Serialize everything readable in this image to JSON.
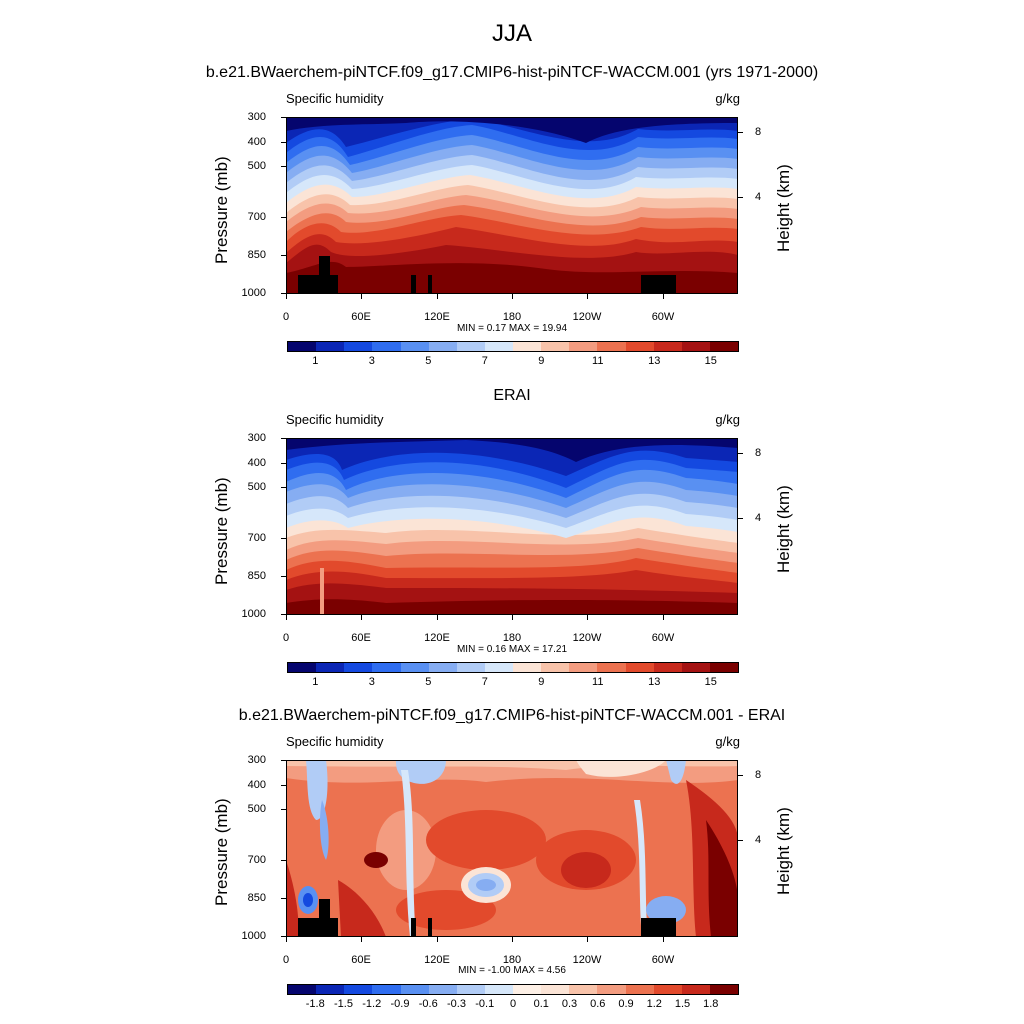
{
  "figure_title": "JJA",
  "panels": [
    {
      "title": "b.e21.BWaerchem-piNTCF.f09_g17.CMIP6-hist-piNTCF-WACCM.001 (yrs 1971-2000)",
      "left_title": "Specific humidity",
      "right_title": "g/kg",
      "minmax": "MIN =   0.17  MAX =  19.94"
    },
    {
      "title": "ERAI",
      "left_title": "Specific humidity",
      "right_title": "g/kg",
      "minmax": "MIN =   0.16  MAX =  17.21"
    },
    {
      "title": "b.e21.BWaerchem-piNTCF.f09_g17.CMIP6-hist-piNTCF-WACCM.001 - ERAI",
      "left_title": "Specific humidity",
      "right_title": "g/kg",
      "minmax": "MIN =  -1.00  MAX =   4.56"
    }
  ],
  "axes": {
    "ylabel": "Pressure (mb)",
    "y2label": "Height (km)",
    "yticks": [
      "300",
      "400",
      "500",
      "700",
      "850",
      "1000"
    ],
    "xticks": [
      "0",
      "60E",
      "120E",
      "180",
      "120W",
      "60W"
    ],
    "y2ticks": [
      "8",
      "4"
    ]
  },
  "colorbars": {
    "abs_labels": [
      "1",
      "3",
      "5",
      "7",
      "9",
      "11",
      "13",
      "15"
    ],
    "diff_labels": [
      "-1.8",
      "-1.5",
      "-1.2",
      "-0.9",
      "-0.6",
      "-0.3",
      "-0.1",
      "0",
      "0.1",
      "0.3",
      "0.6",
      "0.9",
      "1.2",
      "1.5",
      "1.8"
    ],
    "abs_colors": [
      "#05056e",
      "#0b26b5",
      "#1449e0",
      "#2f6df0",
      "#5990f2",
      "#86adf2",
      "#b1ccf6",
      "#d6e7fa",
      "#fbe4d6",
      "#f8c3aa",
      "#f39c80",
      "#ec7250",
      "#e24a2c",
      "#c7291c",
      "#a41212",
      "#7a0000"
    ],
    "diff_colors": [
      "#05056e",
      "#0b26b5",
      "#1449e0",
      "#2f6df0",
      "#5990f2",
      "#86adf2",
      "#b1ccf6",
      "#d6e7fa",
      "#fdf0e6",
      "#fbe4d6",
      "#f8c3aa",
      "#f39c80",
      "#ec7250",
      "#e24a2c",
      "#c7291c",
      "#7a0000"
    ]
  },
  "chart_data": [
    {
      "type": "heatmap",
      "title": "b.e21.BWaerchem-piNTCF.f09_g17.CMIP6-hist-piNTCF-WACCM.001 (yrs 1971-2000)",
      "variable": "Specific humidity",
      "units": "g/kg",
      "xlabel": "",
      "ylabel": "Pressure (mb)",
      "y2label": "Height (km)",
      "x_range": [
        0,
        360
      ],
      "y_range": [
        1000,
        300
      ],
      "levels": [
        1,
        2,
        3,
        4,
        5,
        6,
        7,
        8,
        9,
        10,
        11,
        12,
        13,
        14,
        15
      ],
      "min": 0.17,
      "max": 19.94
    },
    {
      "type": "heatmap",
      "title": "ERAI",
      "variable": "Specific humidity",
      "units": "g/kg",
      "xlabel": "",
      "ylabel": "Pressure (mb)",
      "y2label": "Height (km)",
      "x_range": [
        0,
        360
      ],
      "y_range": [
        1000,
        300
      ],
      "levels": [
        1,
        2,
        3,
        4,
        5,
        6,
        7,
        8,
        9,
        10,
        11,
        12,
        13,
        14,
        15
      ],
      "min": 0.16,
      "max": 17.21
    },
    {
      "type": "heatmap",
      "title": "b.e21.BWaerchem-piNTCF.f09_g17.CMIP6-hist-piNTCF-WACCM.001 - ERAI",
      "variable": "Specific humidity",
      "units": "g/kg",
      "xlabel": "",
      "ylabel": "Pressure (mb)",
      "y2label": "Height (km)",
      "x_range": [
        0,
        360
      ],
      "y_range": [
        1000,
        300
      ],
      "levels": [
        -1.8,
        -1.5,
        -1.2,
        -0.9,
        -0.6,
        -0.3,
        -0.1,
        0,
        0.1,
        0.3,
        0.6,
        0.9,
        1.2,
        1.5,
        1.8
      ],
      "min": -1.0,
      "max": 4.56
    }
  ]
}
